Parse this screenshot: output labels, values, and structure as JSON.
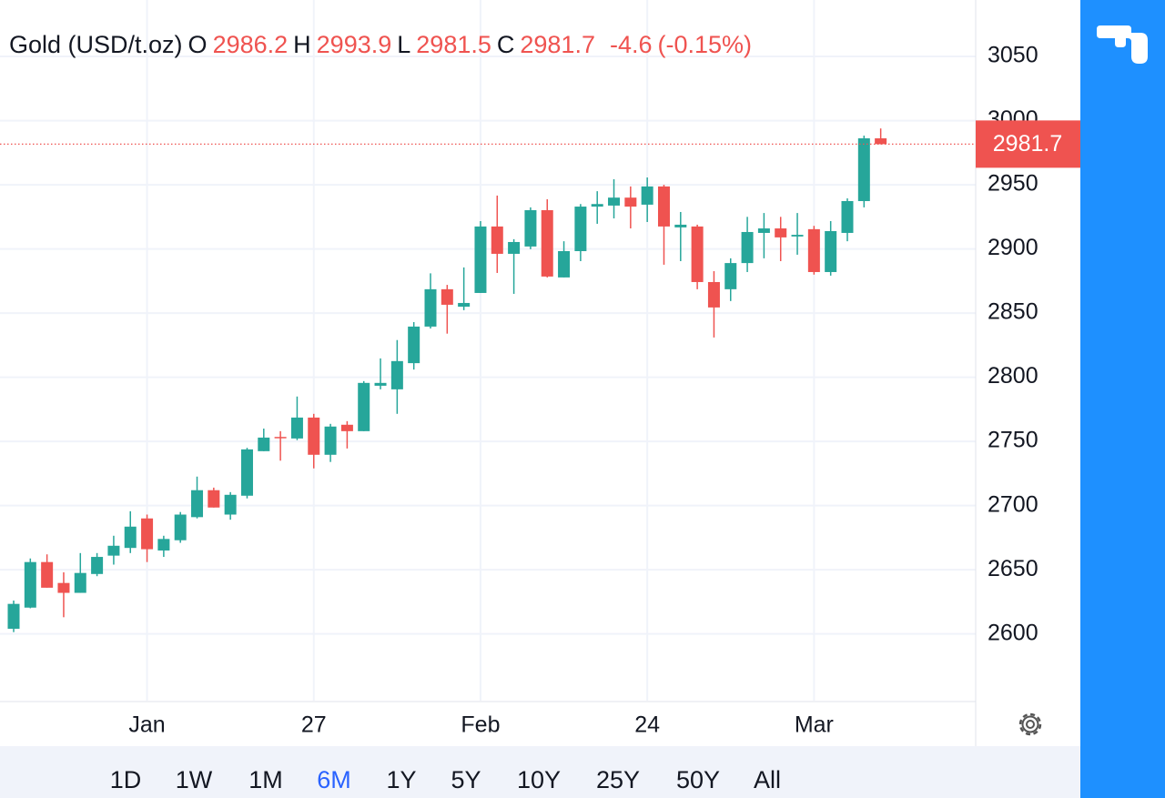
{
  "chart_data": {
    "type": "candlestick",
    "title": "Gold (USD/t.oz)",
    "ohlc_labels": [
      "O",
      "H",
      "L",
      "C"
    ],
    "change": "-4.6",
    "change_percent": "(-0.15%)",
    "categories": [
      null,
      null,
      null,
      null,
      null,
      null,
      null,
      null,
      "Jan",
      null,
      null,
      null,
      null,
      null,
      null,
      null,
      null,
      null,
      "27",
      null,
      null,
      null,
      null,
      null,
      null,
      null,
      null,
      null,
      "Feb",
      null,
      null,
      null,
      null,
      null,
      null,
      null,
      null,
      null,
      "24",
      null,
      null,
      null,
      null,
      null,
      null,
      null,
      null,
      null,
      "Mar",
      null,
      null,
      null,
      null
    ],
    "open": [
      2604,
      2620.5,
      2656,
      2639.7,
      2632,
      2646.7,
      2661,
      2667,
      2690,
      2665,
      2673,
      2691,
      2712,
      2693,
      2707.7,
      2742.4,
      2753.5,
      2752.3,
      2768.6,
      2739.6,
      2763,
      2758,
      2793.4,
      2790.6,
      2811,
      2839.5,
      2868.6,
      2855,
      2865.7,
      2917.5,
      2896.2,
      2901.9,
      2930.2,
      2877.8,
      2898.3,
      2933,
      2933.8,
      2940,
      2934.5,
      2948.7,
      2916.8,
      2917.5,
      2874.2,
      2868.6,
      2889,
      2912.5,
      2916,
      2909.7,
      2915.4,
      2882,
      2912.5,
      2937.3,
      2986.2
    ],
    "high": [
      2626,
      2658.8,
      2662,
      2648,
      2663,
      2663,
      2676.5,
      2695.6,
      2693,
      2676.5,
      2695,
      2722.6,
      2714,
      2710.5,
      2745,
      2760,
      2758,
      2785,
      2771.5,
      2763.7,
      2765.8,
      2797,
      2814.7,
      2829,
      2843,
      2881,
      2872,
      2885.6,
      2921.7,
      2941.6,
      2907.6,
      2932.4,
      2938.7,
      2906,
      2935,
      2945,
      2954.3,
      2948.7,
      2955.7,
      2950,
      2928.8,
      2918.9,
      2882.7,
      2892.7,
      2925,
      2928,
      2925,
      2928,
      2918,
      2921.7,
      2939.4,
      2988.3,
      2993.9
    ],
    "low": [
      2601.4,
      2620,
      2636,
      2613,
      2632,
      2645,
      2654,
      2663,
      2656,
      2660,
      2671,
      2690,
      2698.5,
      2689,
      2705.6,
      2742.4,
      2735,
      2751,
      2729,
      2734,
      2744.5,
      2758,
      2790.6,
      2771.5,
      2806,
      2838,
      2834,
      2852.3,
      2865.7,
      2881.3,
      2865,
      2899.8,
      2877.8,
      2877.8,
      2890.5,
      2919.6,
      2923.8,
      2916,
      2921,
      2887.7,
      2890.5,
      2868.6,
      2831,
      2859.4,
      2882,
      2892.7,
      2890.5,
      2895.5,
      2880,
      2879.2,
      2906,
      2932.4,
      2981.5
    ],
    "close": [
      2623.4,
      2656,
      2636,
      2632,
      2647.5,
      2660,
      2668.7,
      2683.6,
      2666,
      2674,
      2693,
      2712,
      2698.5,
      2708.4,
      2743.8,
      2753,
      2752.5,
      2768.6,
      2739.6,
      2761.6,
      2758,
      2795.6,
      2795.6,
      2812.6,
      2839.5,
      2868.6,
      2856.5,
      2857.9,
      2917.5,
      2896.2,
      2905.4,
      2930.2,
      2878.5,
      2898.3,
      2933,
      2935,
      2940,
      2933,
      2948.7,
      2917.5,
      2918.9,
      2874.2,
      2854.4,
      2889,
      2913.2,
      2916,
      2909,
      2911,
      2882,
      2913.9,
      2937.3,
      2986.2,
      2981.7
    ],
    "up_color": "#26a69a",
    "down_color": "#ef5350",
    "ylim": [
      2548,
      3094
    ],
    "yticks": [
      2600,
      2650,
      2700,
      2750,
      2800,
      2850,
      2900,
      2950,
      3000,
      3050
    ],
    "grid": true,
    "last_price_line": true
  },
  "toolbar": {
    "ranges": [
      "1D",
      "1W",
      "1M",
      "6M",
      "1Y",
      "5Y",
      "10Y",
      "25Y",
      "50Y",
      "All"
    ],
    "selected": "6M"
  }
}
